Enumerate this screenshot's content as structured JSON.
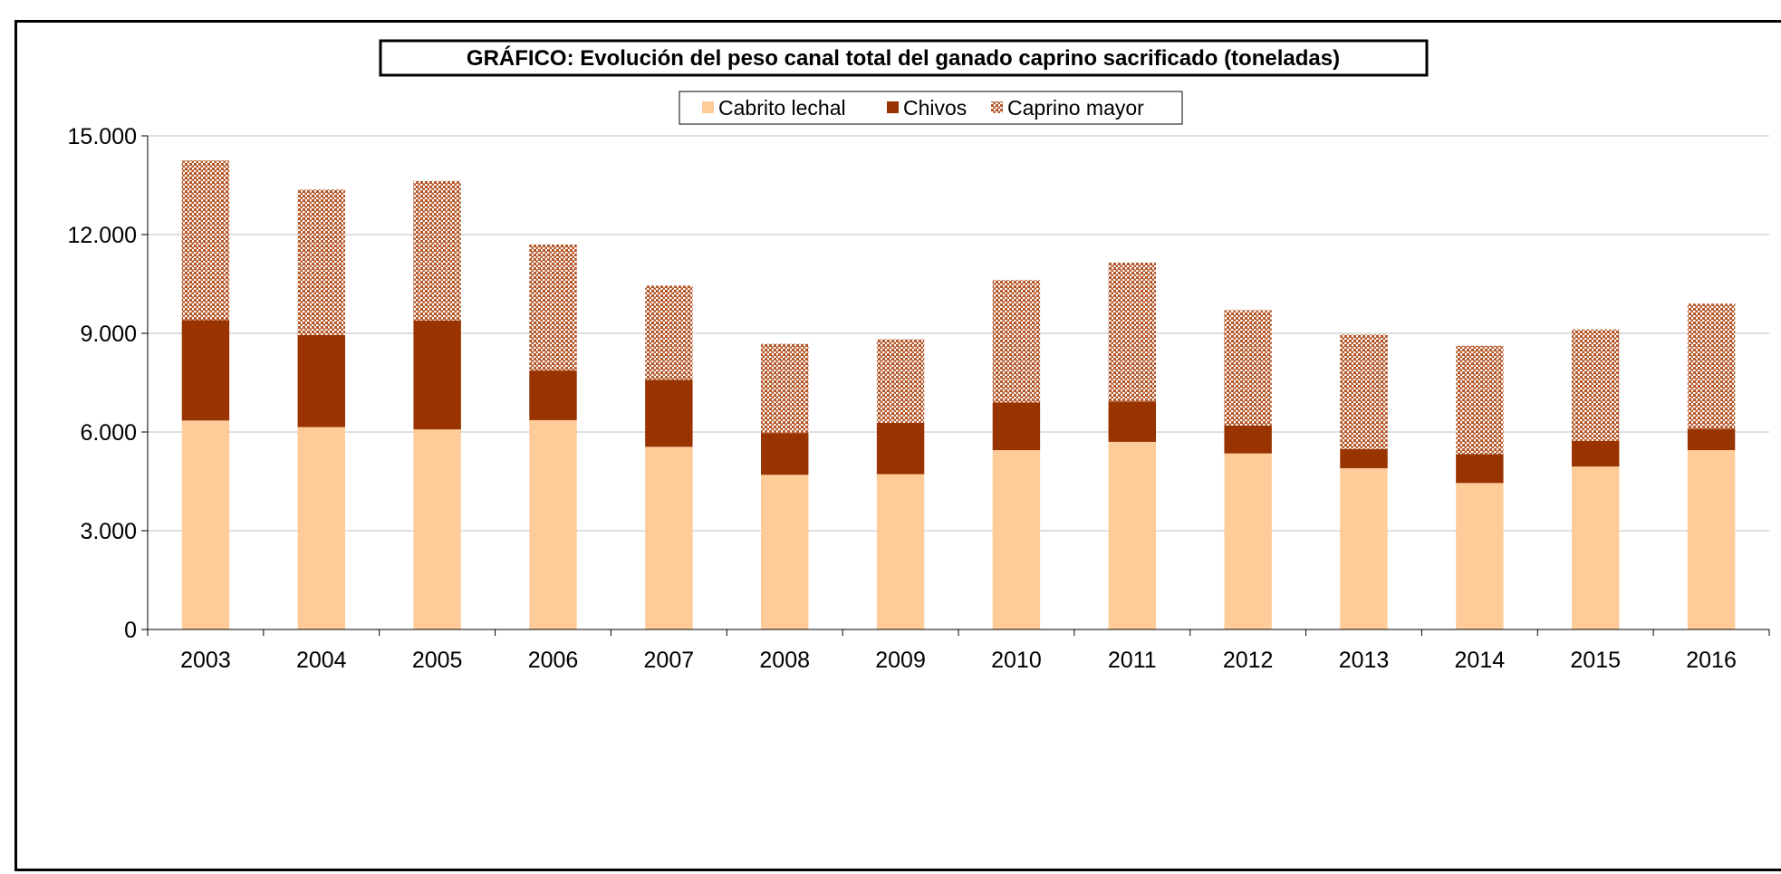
{
  "chart_data": {
    "type": "bar",
    "stacked": true,
    "title": "GRÁFICO: Evolución del peso canal total del ganado caprino sacrificado (toneladas)",
    "xlabel": "",
    "ylabel": "",
    "ylim": [
      0,
      15000
    ],
    "yticks": [
      0,
      3000,
      6000,
      9000,
      12000,
      15000
    ],
    "ytick_labels": [
      "0",
      "3.000",
      "6.000",
      "9.000",
      "12.000",
      "15.000"
    ],
    "grid": "horizontal",
    "legend_position": "top-center",
    "categories": [
      "2003",
      "2004",
      "2005",
      "2006",
      "2007",
      "2008",
      "2009",
      "2010",
      "2011",
      "2012",
      "2013",
      "2014",
      "2015",
      "2016"
    ],
    "series": [
      {
        "name": "Cabrito lechal",
        "color": "#FFCC99",
        "pattern": "solid",
        "values": [
          6350,
          6150,
          6080,
          6360,
          5550,
          4700,
          4720,
          5450,
          5700,
          5350,
          4900,
          4450,
          4950,
          5450
        ]
      },
      {
        "name": "Chivos",
        "color": "#993300",
        "pattern": "solid",
        "values": [
          3050,
          2800,
          3310,
          1510,
          2040,
          1270,
          1560,
          1450,
          1230,
          850,
          580,
          880,
          780,
          650
        ]
      },
      {
        "name": "Caprino mayor",
        "color": "#B5582A",
        "pattern": "dotted",
        "values": [
          4850,
          4420,
          4240,
          3830,
          2860,
          2710,
          2540,
          3720,
          4220,
          3500,
          3480,
          3290,
          3390,
          3800
        ]
      }
    ]
  }
}
